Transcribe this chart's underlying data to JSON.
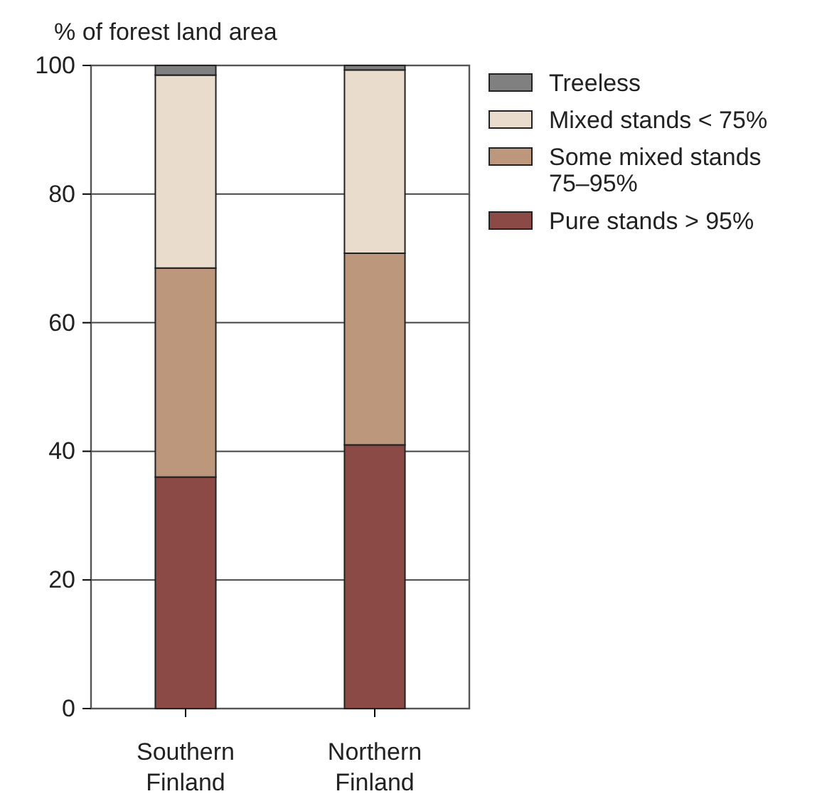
{
  "chart_data": {
    "type": "bar",
    "stacked": true,
    "ylabel": "% of forest land area",
    "categories": [
      "Southern Finland",
      "Northern Finland"
    ],
    "series": [
      {
        "name": "Pure stands > 95%",
        "color": "#8b4a45",
        "values": [
          36,
          41
        ]
      },
      {
        "name": "Some mixed stands 75–95%",
        "color": "#bc977b",
        "values": [
          32.5,
          29.8
        ]
      },
      {
        "name": "Mixed stands < 75%",
        "color": "#eadccd",
        "values": [
          30,
          28.5
        ]
      },
      {
        "name": "Treeless",
        "color": "#808080",
        "values": [
          1.5,
          0.7
        ]
      }
    ],
    "ylim": [
      0,
      100
    ],
    "yticks": [
      0,
      20,
      40,
      60,
      80,
      100
    ],
    "grid": "y",
    "legend": "right"
  }
}
